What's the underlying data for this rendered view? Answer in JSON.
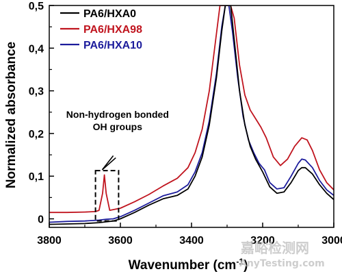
{
  "chart_data": {
    "type": "line",
    "xlabel": "Wavenumber (cm",
    "xlabel_sup": "-1",
    "xlabel_close": ")",
    "ylabel": "Normalized absorbance",
    "xlim": [
      3800,
      3000
    ],
    "ylim": [
      -0.02,
      0.5
    ],
    "x_reversed": true,
    "xticks": [
      3800,
      3600,
      3400,
      3200,
      3000
    ],
    "xtick_labels": [
      "3800",
      "3600",
      "3400",
      "3200",
      "3000"
    ],
    "yticks": [
      0,
      0.1,
      0.2,
      0.3,
      0.4,
      0.5
    ],
    "ytick_labels": [
      "0",
      "0,1",
      "0,2",
      "0,3",
      "0,4",
      "0,5"
    ],
    "legend_position": "top-left",
    "grid": false,
    "series": [
      {
        "name": "PA6/HXA0",
        "color": "#000000",
        "points": [
          [
            3800,
            -0.013
          ],
          [
            3750,
            -0.012
          ],
          [
            3700,
            -0.011
          ],
          [
            3660,
            -0.009
          ],
          [
            3640,
            -0.007
          ],
          [
            3620,
            -0.005
          ],
          [
            3600,
            0.0
          ],
          [
            3560,
            0.015
          ],
          [
            3520,
            0.032
          ],
          [
            3480,
            0.047
          ],
          [
            3440,
            0.055
          ],
          [
            3410,
            0.07
          ],
          [
            3390,
            0.1
          ],
          [
            3370,
            0.145
          ],
          [
            3350,
            0.22
          ],
          [
            3330,
            0.33
          ],
          [
            3315,
            0.44
          ],
          [
            3305,
            0.5
          ],
          [
            3300,
            0.5
          ],
          [
            3290,
            0.5
          ],
          [
            3280,
            0.42
          ],
          [
            3265,
            0.3
          ],
          [
            3250,
            0.22
          ],
          [
            3235,
            0.17
          ],
          [
            3220,
            0.14
          ],
          [
            3200,
            0.11
          ],
          [
            3180,
            0.075
          ],
          [
            3160,
            0.06
          ],
          [
            3140,
            0.063
          ],
          [
            3120,
            0.085
          ],
          [
            3100,
            0.113
          ],
          [
            3090,
            0.12
          ],
          [
            3080,
            0.12
          ],
          [
            3060,
            0.105
          ],
          [
            3040,
            0.08
          ],
          [
            3020,
            0.06
          ],
          [
            3000,
            0.045
          ]
        ]
      },
      {
        "name": "PA6/HXA98",
        "color": "#c0141e",
        "points": [
          [
            3800,
            0.015
          ],
          [
            3750,
            0.015
          ],
          [
            3700,
            0.016
          ],
          [
            3670,
            0.017
          ],
          [
            3660,
            0.02
          ],
          [
            3650,
            0.06
          ],
          [
            3645,
            0.103
          ],
          [
            3640,
            0.06
          ],
          [
            3630,
            0.02
          ],
          [
            3600,
            0.025
          ],
          [
            3560,
            0.04
          ],
          [
            3520,
            0.057
          ],
          [
            3480,
            0.077
          ],
          [
            3440,
            0.095
          ],
          [
            3410,
            0.12
          ],
          [
            3390,
            0.155
          ],
          [
            3370,
            0.21
          ],
          [
            3350,
            0.3
          ],
          [
            3335,
            0.4
          ],
          [
            3320,
            0.5
          ],
          [
            3310,
            0.5
          ],
          [
            3290,
            0.5
          ],
          [
            3280,
            0.47
          ],
          [
            3265,
            0.36
          ],
          [
            3250,
            0.29
          ],
          [
            3235,
            0.255
          ],
          [
            3220,
            0.235
          ],
          [
            3205,
            0.215
          ],
          [
            3190,
            0.19
          ],
          [
            3170,
            0.145
          ],
          [
            3150,
            0.125
          ],
          [
            3130,
            0.14
          ],
          [
            3110,
            0.17
          ],
          [
            3090,
            0.19
          ],
          [
            3075,
            0.185
          ],
          [
            3060,
            0.16
          ],
          [
            3040,
            0.115
          ],
          [
            3020,
            0.085
          ],
          [
            3000,
            0.068
          ]
        ]
      },
      {
        "name": "PA6/HXA10",
        "color": "#1c1c9c",
        "points": [
          [
            3800,
            -0.008
          ],
          [
            3750,
            -0.006
          ],
          [
            3700,
            -0.005
          ],
          [
            3660,
            -0.003
          ],
          [
            3640,
            -0.001
          ],
          [
            3620,
            0.0
          ],
          [
            3600,
            0.005
          ],
          [
            3560,
            0.02
          ],
          [
            3520,
            0.037
          ],
          [
            3480,
            0.054
          ],
          [
            3440,
            0.063
          ],
          [
            3410,
            0.08
          ],
          [
            3390,
            0.11
          ],
          [
            3370,
            0.155
          ],
          [
            3350,
            0.23
          ],
          [
            3330,
            0.34
          ],
          [
            3315,
            0.45
          ],
          [
            3305,
            0.5
          ],
          [
            3295,
            0.5
          ],
          [
            3285,
            0.44
          ],
          [
            3270,
            0.33
          ],
          [
            3255,
            0.24
          ],
          [
            3240,
            0.185
          ],
          [
            3225,
            0.155
          ],
          [
            3210,
            0.13
          ],
          [
            3195,
            0.115
          ],
          [
            3180,
            0.085
          ],
          [
            3160,
            0.07
          ],
          [
            3140,
            0.073
          ],
          [
            3120,
            0.1
          ],
          [
            3100,
            0.13
          ],
          [
            3090,
            0.14
          ],
          [
            3080,
            0.138
          ],
          [
            3060,
            0.12
          ],
          [
            3040,
            0.09
          ],
          [
            3020,
            0.068
          ],
          [
            3000,
            0.055
          ]
        ]
      }
    ],
    "annotation": {
      "lines": [
        "Non-hydrogen bonded",
        "OH groups"
      ],
      "box_x": [
        3670,
        3605
      ],
      "box_y": [
        -0.005,
        0.113
      ],
      "arrow_from": [
        3613,
        0.143
      ],
      "arrow_to": [
        3651,
        0.115
      ],
      "arrow_tail_end": [
        3620,
        0.148
      ],
      "label_anchor": [
        3608,
        0.237
      ]
    }
  },
  "watermark": {
    "line1": "嘉峪检测网",
    "line2": "AnyTesting.com"
  }
}
